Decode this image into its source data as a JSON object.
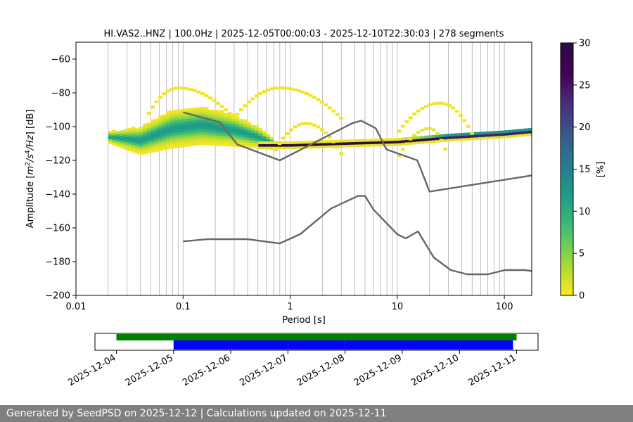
{
  "chart_data": [
    {
      "type": "heatmap",
      "title": "HI.VAS2..HNZ | 100.0Hz | 2025-12-05T00:00:03 - 2025-12-10T22:30:03 | 278 segments",
      "xlabel": "Period [s]",
      "ylabel": "Amplitude [$m^2/s^4/Hz$] [dB]",
      "ylabel_parts": {
        "pre": "Amplitude [",
        "m": "m",
        "sup2": "2",
        "slash1": "/",
        "s": "s",
        "sup4": "4",
        "slash2": "/",
        "hz": "Hz",
        "post": "] [dB]"
      },
      "x_scale": "log",
      "xlim": [
        0.01,
        180
      ],
      "ylim": [
        -200,
        -50
      ],
      "x_ticks": [
        0.01,
        0.1,
        1,
        10,
        100
      ],
      "x_tick_labels": [
        "0.01",
        "0.1",
        "1",
        "10",
        "100"
      ],
      "y_ticks": [
        -200,
        -180,
        -160,
        -140,
        -120,
        -100,
        -80,
        -60
      ],
      "y_tick_labels": [
        "−200",
        "−180",
        "−160",
        "−140",
        "−120",
        "−100",
        "−80",
        "−60"
      ],
      "grid": true,
      "colorbar": {
        "label": "[%]",
        "range": [
          0,
          30
        ],
        "ticks": [
          0,
          5,
          10,
          15,
          20,
          25,
          30
        ],
        "tick_labels": [
          "0",
          "5",
          "10",
          "15",
          "20",
          "25",
          "30"
        ],
        "colormap": "viridis_r"
      },
      "density_bands": [
        {
          "name": "microseism peak band",
          "x_range": [
            0.02,
            0.7
          ],
          "center": [
            [
              0.02,
              -106
            ],
            [
              0.04,
              -108
            ],
            [
              0.08,
              -101
            ],
            [
              0.15,
              -99
            ],
            [
              0.3,
              -102
            ],
            [
              0.5,
              -106
            ],
            [
              0.7,
              -110
            ]
          ],
          "half_width_db": [
            3,
            8,
            11,
            11,
            9,
            6,
            3
          ],
          "peak_percent": 12
        },
        {
          "name": "noise floor",
          "x_range": [
            0.5,
            180
          ],
          "center": [
            [
              0.5,
              -111
            ],
            [
              1,
              -111
            ],
            [
              3,
              -110
            ],
            [
              10,
              -109
            ],
            [
              30,
              -106
            ],
            [
              100,
              -104
            ],
            [
              180,
              -102.5
            ]
          ],
          "half_width_db": [
            1.5,
            1.5,
            1.5,
            1.5,
            2,
            2,
            2
          ],
          "peak_percent": 30
        }
      ],
      "sparse_arcs": [
        {
          "x_range": [
            0.045,
            0.3
          ],
          "peak": [
            0.09,
            -77
          ]
        },
        {
          "x_range": [
            0.3,
            3.0
          ],
          "peak": [
            0.8,
            -77
          ]
        },
        {
          "x_range": [
            10,
            50
          ],
          "peak": [
            25,
            -86
          ]
        },
        {
          "x_range": [
            0.7,
            3.0
          ],
          "peak": [
            1.4,
            -98
          ]
        },
        {
          "x_range": [
            10,
            30
          ],
          "peak": [
            20,
            -101
          ]
        }
      ],
      "series": [
        {
          "role": "high noise model",
          "color": "#666666",
          "x": [
            0.1,
            0.22,
            0.32,
            0.8,
            3.8,
            4.6,
            6.3,
            7.9,
            15.4,
            20,
            354.8
          ],
          "y": [
            -91.5,
            -97.4,
            -110.5,
            -120,
            -98,
            -96.5,
            -101,
            -113.5,
            -120,
            -138.5,
            -126
          ]
        },
        {
          "role": "low noise model",
          "color": "#666666",
          "x": [
            0.1,
            0.17,
            0.4,
            0.8,
            1.24,
            2.4,
            4.3,
            5.0,
            6.0,
            10.0,
            12.0,
            15.6,
            21.9,
            31.6,
            45.0,
            70.0,
            101.0,
            154.0,
            328.0
          ],
          "y": [
            -168,
            -166.7,
            -166.7,
            -169.2,
            -163.7,
            -148.6,
            -141.1,
            -141.1,
            -149.2,
            -163.8,
            -166.2,
            -162.1,
            -177.5,
            -185,
            -187.5,
            -187.5,
            -185,
            -185,
            -187.5
          ]
        }
      ]
    },
    {
      "type": "timeline",
      "x_tick_labels": [
        "2025-12-04",
        "2025-12-05",
        "2025-12-06",
        "2025-12-07",
        "2025-12-08",
        "2025-12-09",
        "2025-12-10",
        "2025-12-11"
      ],
      "xlim": [
        "2025-12-03T15:00:00",
        "2025-12-11T09:00:00"
      ],
      "green_bar": {
        "start": "2025-12-04T00:00:00",
        "end": "2025-12-11T00:00:00",
        "color": "#008000"
      },
      "blue_segments": [
        {
          "start": "2025-12-05T00:00:03",
          "end": "2025-12-06T00:00:00"
        },
        {
          "start": "2025-12-06T00:00:03",
          "end": "2025-12-07T00:00:00"
        },
        {
          "start": "2025-12-07T00:00:03",
          "end": "2025-12-08T00:00:00"
        },
        {
          "start": "2025-12-08T00:00:03",
          "end": "2025-12-09T00:00:00"
        },
        {
          "start": "2025-12-09T00:00:03",
          "end": "2025-12-10T22:30:03"
        }
      ],
      "blue_color": "#0000ff"
    }
  ],
  "footer": {
    "text": "Generated by SeedPSD on 2025-12-12 | Calculations updated on 2025-12-11"
  }
}
